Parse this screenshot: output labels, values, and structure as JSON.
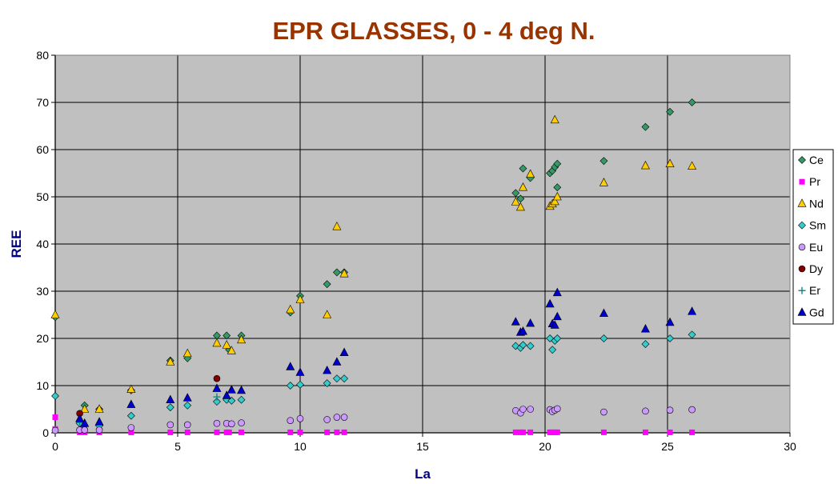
{
  "chart_data": {
    "type": "scatter",
    "title": "EPR GLASSES, 0 - 4 deg N.",
    "xlabel": "La",
    "ylabel": "REE",
    "xlim": [
      0,
      30
    ],
    "ylim": [
      0,
      80
    ],
    "xticks": [
      0,
      5,
      10,
      15,
      20,
      25,
      30
    ],
    "yticks": [
      0,
      10,
      20,
      30,
      40,
      50,
      60,
      70,
      80
    ],
    "grid": true,
    "plot_background": "#C0C0C0",
    "legend_position": "right",
    "series": [
      {
        "name": "Ce",
        "marker": "diamond",
        "color": "#339966",
        "points": [
          [
            0.0,
            24.5
          ],
          [
            1.2,
            5.8
          ],
          [
            1.8,
            5.0
          ],
          [
            3.1,
            9.0
          ],
          [
            4.7,
            15.3
          ],
          [
            5.4,
            15.8
          ],
          [
            6.6,
            20.6
          ],
          [
            7.0,
            20.6
          ],
          [
            7.1,
            17.6
          ],
          [
            7.6,
            20.6
          ],
          [
            9.6,
            25.5
          ],
          [
            10.0,
            29.0
          ],
          [
            11.1,
            31.5
          ],
          [
            11.5,
            34.0
          ],
          [
            11.8,
            34.0
          ],
          [
            18.8,
            50.8
          ],
          [
            19.0,
            49.6
          ],
          [
            19.1,
            56.0
          ],
          [
            19.4,
            54.0
          ],
          [
            20.2,
            55.0
          ],
          [
            20.3,
            55.5
          ],
          [
            20.4,
            56.3
          ],
          [
            20.5,
            57.0
          ],
          [
            20.5,
            52.0
          ],
          [
            22.4,
            57.6
          ],
          [
            24.1,
            64.8
          ],
          [
            25.1,
            68.0
          ],
          [
            26.0,
            70.0
          ]
        ]
      },
      {
        "name": "Pr",
        "marker": "square",
        "color": "#FF00FF",
        "points": [
          [
            0.0,
            3.3
          ],
          [
            0.0,
            0.8
          ],
          [
            1.0,
            0.1
          ],
          [
            1.2,
            0.1
          ],
          [
            1.8,
            0.1
          ],
          [
            3.1,
            0.1
          ],
          [
            4.7,
            0.1
          ],
          [
            5.4,
            0.1
          ],
          [
            6.6,
            0.1
          ],
          [
            7.0,
            0.1
          ],
          [
            7.1,
            0.1
          ],
          [
            7.6,
            0.1
          ],
          [
            9.6,
            0.1
          ],
          [
            10.0,
            0.1
          ],
          [
            11.1,
            0.1
          ],
          [
            11.5,
            0.1
          ],
          [
            11.8,
            0.1
          ],
          [
            18.8,
            0.1
          ],
          [
            19.0,
            0.1
          ],
          [
            19.1,
            0.1
          ],
          [
            19.4,
            0.1
          ],
          [
            20.2,
            0.1
          ],
          [
            20.3,
            0.1
          ],
          [
            20.4,
            0.1
          ],
          [
            20.5,
            0.1
          ],
          [
            22.4,
            0.1
          ],
          [
            24.1,
            0.1
          ],
          [
            25.1,
            0.1
          ],
          [
            26.0,
            0.1
          ]
        ]
      },
      {
        "name": "Nd",
        "marker": "triangle",
        "color": "#FFCC00",
        "points": [
          [
            0.0,
            25.0
          ],
          [
            1.2,
            5.0
          ],
          [
            1.8,
            5.0
          ],
          [
            3.1,
            9.2
          ],
          [
            4.7,
            15.0
          ],
          [
            5.4,
            16.8
          ],
          [
            6.6,
            19.0
          ],
          [
            7.0,
            18.6
          ],
          [
            7.2,
            17.4
          ],
          [
            7.6,
            19.7
          ],
          [
            9.6,
            26.1
          ],
          [
            10.0,
            28.2
          ],
          [
            11.1,
            25.0
          ],
          [
            11.5,
            43.7
          ],
          [
            11.8,
            33.7
          ],
          [
            18.8,
            48.9
          ],
          [
            19.0,
            47.8
          ],
          [
            19.1,
            52.0
          ],
          [
            19.4,
            54.8
          ],
          [
            20.2,
            48.0
          ],
          [
            20.3,
            48.5
          ],
          [
            20.4,
            49.0
          ],
          [
            20.5,
            50.0
          ],
          [
            20.4,
            66.3
          ],
          [
            22.4,
            53.0
          ],
          [
            24.1,
            56.6
          ],
          [
            25.1,
            57.0
          ],
          [
            26.0,
            56.5
          ]
        ]
      },
      {
        "name": "Sm",
        "marker": "diamond",
        "color": "#33CCCC",
        "points": [
          [
            0.0,
            7.8
          ],
          [
            1.0,
            2.0
          ],
          [
            1.2,
            1.5
          ],
          [
            1.8,
            1.5
          ],
          [
            3.1,
            3.6
          ],
          [
            4.7,
            5.4
          ],
          [
            5.4,
            5.8
          ],
          [
            6.6,
            6.6
          ],
          [
            7.0,
            7.0
          ],
          [
            7.2,
            6.8
          ],
          [
            7.6,
            7.0
          ],
          [
            9.6,
            10.0
          ],
          [
            10.0,
            10.2
          ],
          [
            11.1,
            10.5
          ],
          [
            11.5,
            11.5
          ],
          [
            11.8,
            11.5
          ],
          [
            18.8,
            18.4
          ],
          [
            19.0,
            18.0
          ],
          [
            19.1,
            18.6
          ],
          [
            19.4,
            18.4
          ],
          [
            20.2,
            20.0
          ],
          [
            20.3,
            17.6
          ],
          [
            20.4,
            19.5
          ],
          [
            20.5,
            20.0
          ],
          [
            22.4,
            20.0
          ],
          [
            24.1,
            18.8
          ],
          [
            25.1,
            20.0
          ],
          [
            26.0,
            20.8
          ]
        ]
      },
      {
        "name": "Eu",
        "marker": "circle",
        "color": "#CC99FF",
        "points": [
          [
            0.0,
            0.5
          ],
          [
            1.0,
            0.6
          ],
          [
            1.2,
            0.6
          ],
          [
            1.8,
            0.6
          ],
          [
            3.1,
            1.1
          ],
          [
            4.7,
            1.7
          ],
          [
            5.4,
            1.7
          ],
          [
            6.6,
            2.0
          ],
          [
            7.0,
            2.0
          ],
          [
            7.2,
            1.9
          ],
          [
            7.6,
            2.1
          ],
          [
            9.6,
            2.6
          ],
          [
            10.0,
            3.0
          ],
          [
            11.1,
            2.8
          ],
          [
            11.5,
            3.3
          ],
          [
            11.8,
            3.3
          ],
          [
            18.8,
            4.7
          ],
          [
            19.0,
            4.2
          ],
          [
            19.1,
            5.0
          ],
          [
            19.4,
            5.0
          ],
          [
            20.2,
            4.9
          ],
          [
            20.3,
            4.5
          ],
          [
            20.4,
            4.8
          ],
          [
            20.5,
            5.1
          ],
          [
            22.4,
            4.4
          ],
          [
            24.1,
            4.6
          ],
          [
            25.1,
            4.8
          ],
          [
            26.0,
            4.9
          ]
        ]
      },
      {
        "name": "Dy",
        "marker": "circle",
        "color": "#800000",
        "points": [
          [
            1.0,
            4.1
          ],
          [
            6.6,
            11.5
          ]
        ]
      },
      {
        "name": "Er",
        "marker": "plus",
        "color": "#008080",
        "points": [
          [
            1.0,
            2.2
          ],
          [
            6.6,
            7.6
          ]
        ]
      },
      {
        "name": "Gd",
        "marker": "triangle",
        "color": "#0000CC",
        "points": [
          [
            1.0,
            3.0
          ],
          [
            1.2,
            2.0
          ],
          [
            1.8,
            2.3
          ],
          [
            3.1,
            6.0
          ],
          [
            4.7,
            7.0
          ],
          [
            5.4,
            7.4
          ],
          [
            6.6,
            9.4
          ],
          [
            7.0,
            7.9
          ],
          [
            7.2,
            9.1
          ],
          [
            7.6,
            9.0
          ],
          [
            9.6,
            14.0
          ],
          [
            10.0,
            12.8
          ],
          [
            11.1,
            13.2
          ],
          [
            11.5,
            15.0
          ],
          [
            11.8,
            17.0
          ],
          [
            18.8,
            23.5
          ],
          [
            19.0,
            21.3
          ],
          [
            19.1,
            21.5
          ],
          [
            19.4,
            23.2
          ],
          [
            20.2,
            27.3
          ],
          [
            20.3,
            23.1
          ],
          [
            20.4,
            22.8
          ],
          [
            20.5,
            29.7
          ],
          [
            20.5,
            24.6
          ],
          [
            22.4,
            25.3
          ],
          [
            24.1,
            22.0
          ],
          [
            25.1,
            23.4
          ],
          [
            26.0,
            25.7
          ]
        ]
      }
    ]
  }
}
